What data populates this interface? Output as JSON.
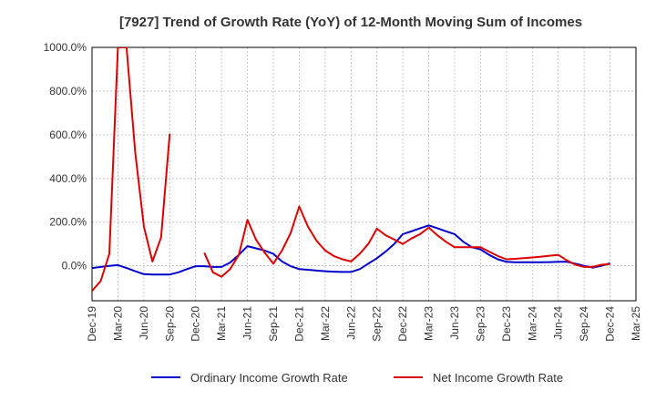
{
  "chart_data": {
    "type": "line",
    "title": "[7927]  Trend of Growth Rate (YoY) of 12-Month Moving Sum of Incomes",
    "xlabel": "",
    "ylabel": "",
    "x_ticks": [
      "Dec-19",
      "Mar-20",
      "Jun-20",
      "Sep-20",
      "Dec-20",
      "Mar-21",
      "Jun-21",
      "Sep-21",
      "Dec-21",
      "Mar-22",
      "Jun-22",
      "Sep-22",
      "Dec-22",
      "Mar-23",
      "Jun-23",
      "Sep-23",
      "Dec-23",
      "Mar-24",
      "Jun-24",
      "Sep-24",
      "Dec-24",
      "Mar-25"
    ],
    "x": [
      "Dec-19",
      "Jan-20",
      "Feb-20",
      "Mar-20",
      "Apr-20",
      "May-20",
      "Jun-20",
      "Jul-20",
      "Aug-20",
      "Sep-20",
      "Oct-20",
      "Nov-20",
      "Dec-20",
      "Jan-21",
      "Feb-21",
      "Mar-21",
      "Apr-21",
      "May-21",
      "Jun-21",
      "Jul-21",
      "Aug-21",
      "Sep-21",
      "Oct-21",
      "Nov-21",
      "Dec-21",
      "Jan-22",
      "Feb-22",
      "Mar-22",
      "Apr-22",
      "May-22",
      "Jun-22",
      "Jul-22",
      "Aug-22",
      "Sep-22",
      "Oct-22",
      "Nov-22",
      "Dec-22",
      "Jan-23",
      "Feb-23",
      "Mar-23",
      "Apr-23",
      "May-23",
      "Jun-23",
      "Jul-23",
      "Aug-23",
      "Sep-23",
      "Oct-23",
      "Nov-23",
      "Dec-23",
      "Jan-24",
      "Feb-24",
      "Mar-24",
      "Apr-24",
      "May-24",
      "Jun-24",
      "Jul-24",
      "Aug-24",
      "Sep-24",
      "Oct-24",
      "Nov-24",
      "Dec-24"
    ],
    "y_ticks": [
      "0.0%",
      "200.0%",
      "400.0%",
      "600.0%",
      "800.0%",
      "1000.0%"
    ],
    "ylim": [
      -160,
      1000
    ],
    "series": [
      {
        "name": "Ordinary Income Growth Rate",
        "color": "#0000cc",
        "values": [
          -10,
          -5,
          0,
          3,
          -10,
          -25,
          -38,
          -40,
          -40,
          -40,
          -30,
          -15,
          -2,
          -2,
          -5,
          -5,
          15,
          50,
          90,
          80,
          70,
          55,
          20,
          -2,
          -15,
          -18,
          -22,
          -25,
          -27,
          -28,
          -28,
          -15,
          10,
          35,
          65,
          100,
          145,
          158,
          172,
          185,
          172,
          158,
          145,
          110,
          85,
          75,
          50,
          30,
          18,
          16,
          16,
          16,
          16,
          17,
          18,
          18,
          10,
          0,
          -8,
          0,
          12
        ]
      },
      {
        "name": "Net Income Growth Rate",
        "color": "#dd0000",
        "values": [
          -115,
          -70,
          55,
          1000,
          1000,
          520,
          180,
          20,
          130,
          605,
          null,
          null,
          null,
          60,
          -30,
          -50,
          -15,
          50,
          210,
          120,
          60,
          10,
          70,
          150,
          272,
          180,
          115,
          70,
          45,
          30,
          20,
          55,
          100,
          170,
          140,
          120,
          100,
          125,
          145,
          175,
          140,
          110,
          85,
          85,
          85,
          85,
          65,
          45,
          30,
          32,
          35,
          38,
          42,
          46,
          50,
          25,
          5,
          -5,
          -5,
          5,
          8
        ]
      }
    ],
    "legend": {
      "placement": "bottom",
      "entries": [
        "Ordinary Income Growth Rate",
        "Net Income Growth Rate"
      ]
    },
    "grid": true
  }
}
